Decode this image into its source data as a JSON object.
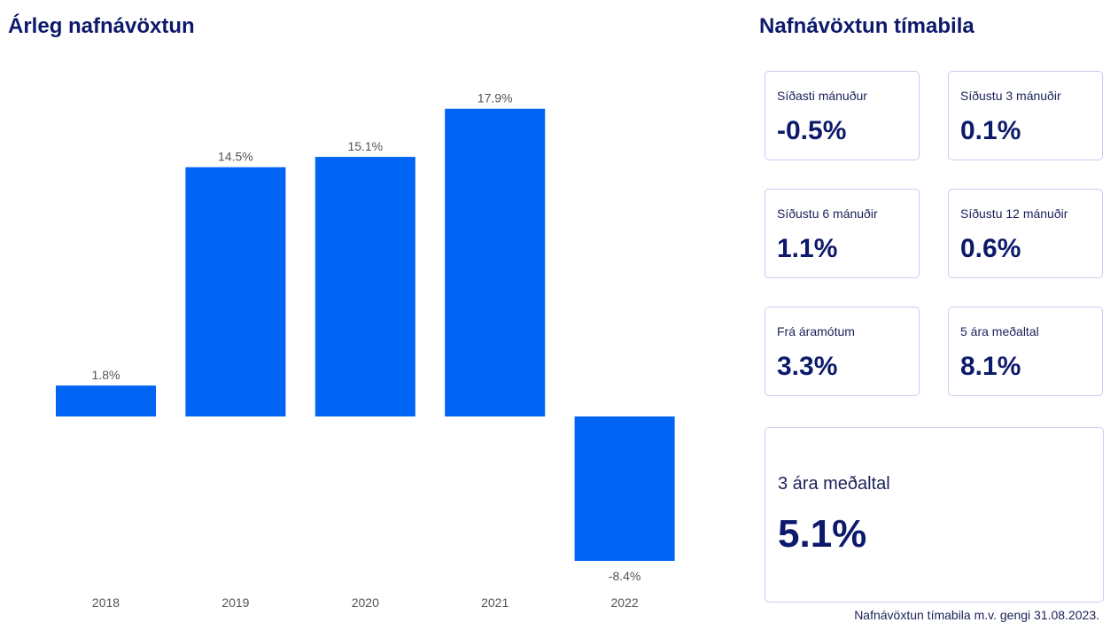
{
  "chart_data": {
    "type": "bar",
    "title": "Árleg nafnávöxtun",
    "xlabel": "",
    "ylabel": "",
    "categories": [
      "2018",
      "2019",
      "2020",
      "2021",
      "2022"
    ],
    "values": [
      1.8,
      14.5,
      15.1,
      17.9,
      -8.4
    ],
    "data_labels": [
      "1.8%",
      "14.5%",
      "15.1%",
      "17.9%",
      "-8.4%"
    ],
    "ylim": [
      -10,
      19
    ],
    "grid": false,
    "bar_color": "#0064f5"
  },
  "periods": {
    "title": "Nafnávöxtun tímabila",
    "cards": [
      {
        "label": "Síðasti mánuður",
        "value": "-0.5%"
      },
      {
        "label": "Síðustu 3 mánuðir",
        "value": "0.1%"
      },
      {
        "label": "Síðustu 6 mánuðir",
        "value": "1.1%"
      },
      {
        "label": "Síðustu 12 mánuðir",
        "value": "0.6%"
      },
      {
        "label": "Frá áramótum",
        "value": "3.3%"
      },
      {
        "label": "5 ára meðaltal",
        "value": "8.1%"
      }
    ],
    "highlight": {
      "label": "3 ára meðaltal",
      "value": "5.1%"
    },
    "footnote": "Nafnávöxtun tímabila m.v. gengi 31.08.2023."
  },
  "colors": {
    "heading": "#0d1a6b",
    "text": "#1b2159",
    "border": "#c9cdf2",
    "bar": "#0064f5"
  }
}
